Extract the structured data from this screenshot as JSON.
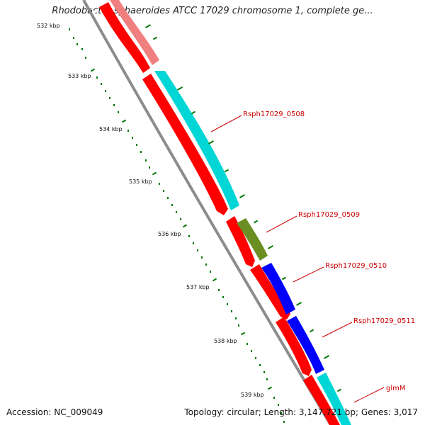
{
  "title": "Rhodobacter sphaeroides ATCC 17029 chromosome 1, complete ge...",
  "accession": "Accession: NC_009049",
  "summary": "Topology: circular; Length: 3,147,721 bp; Genes: 3,017",
  "colors": {
    "backbone": "#8c8c8c",
    "forward_gene": "#00d6d6",
    "reverse_gene": "#ff0000",
    "pseudo_gene": "#f08080",
    "olive_gene": "#6b8e23",
    "blue_gene": "#0000ff",
    "tick": "#007a00",
    "label": "#cc0000"
  },
  "scale_labels": [
    "532 kbp",
    "533 kbp",
    "534 kbp",
    "535 kbp",
    "536 kbp",
    "537 kbp",
    "538 kbp",
    "539 kbp"
  ],
  "gene_labels": [
    "Rsph17029_0508",
    "Rsph17029_0509",
    "Rsph17029_0510",
    "Rsph17029_0511",
    "glmM"
  ]
}
